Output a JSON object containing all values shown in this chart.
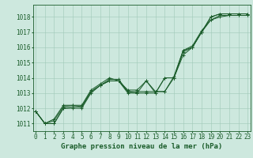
{
  "title": "Graphe pression niveau de la mer (hPa)",
  "ylim": [
    1010.5,
    1018.8
  ],
  "yticks": [
    1011,
    1012,
    1013,
    1014,
    1015,
    1016,
    1017,
    1018
  ],
  "xticks": [
    0,
    1,
    2,
    3,
    4,
    5,
    6,
    7,
    8,
    9,
    10,
    11,
    12,
    13,
    14,
    15,
    16,
    17,
    18,
    19,
    20,
    21,
    22,
    23
  ],
  "xlim": [
    -0.3,
    23.3
  ],
  "bg_color": "#cde8de",
  "grid_color": "#a0c8b8",
  "line_color": "#1a5c2a",
  "marker_color": "#1a5c2a",
  "series": [
    [
      1011.8,
      1011.0,
      1011.0,
      1012.0,
      1012.0,
      1012.0,
      1013.0,
      1013.5,
      1013.8,
      1013.8,
      1013.0,
      1013.0,
      1013.8,
      1013.0,
      1014.0,
      1014.0,
      1015.7,
      1016.0,
      1017.0,
      1018.0,
      1018.2,
      1018.2,
      1018.2,
      1018.2
    ],
    [
      1011.8,
      1011.0,
      1011.0,
      1012.0,
      1012.1,
      1012.1,
      1013.1,
      1013.5,
      1013.9,
      1013.9,
      1013.1,
      1013.1,
      1013.1,
      1013.1,
      1013.1,
      1014.0,
      1015.8,
      1016.0,
      1017.0,
      1017.8,
      1018.0,
      1018.1,
      1018.1,
      1018.1
    ],
    [
      1011.8,
      1011.0,
      1011.2,
      1012.1,
      1012.2,
      1012.2,
      1013.2,
      1013.6,
      1014.0,
      1013.8,
      1013.2,
      1013.2,
      1013.8,
      1013.1,
      1013.1,
      1014.1,
      1015.8,
      1016.1,
      1017.1,
      1017.8,
      1018.1,
      1018.1,
      1018.1,
      1018.1
    ],
    [
      1011.8,
      1011.0,
      1011.3,
      1012.2,
      1012.2,
      1012.1,
      1013.1,
      1013.5,
      1013.8,
      1013.8,
      1013.1,
      1013.0,
      1013.0,
      1013.0,
      1014.0,
      1014.0,
      1015.5,
      1016.0,
      1017.0,
      1018.0,
      1018.2,
      1018.2,
      1018.2,
      1018.2
    ]
  ],
  "fontsize_ticks": 5.5,
  "fontsize_label": 6.5,
  "linewidth": 0.7,
  "markersize": 2.5
}
